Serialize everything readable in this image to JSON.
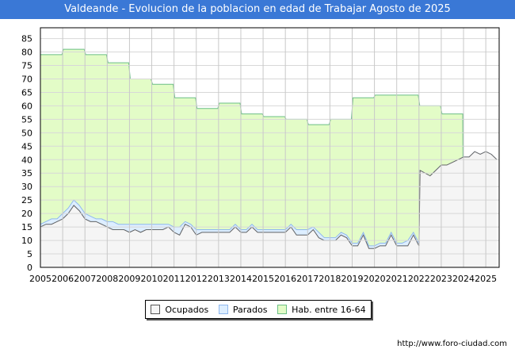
{
  "chart_data": {
    "type": "area",
    "title": "Valdeande - Evolucion de la poblacion en edad de Trabajar Agosto de 2025",
    "xlabel": "",
    "ylabel": "",
    "xlim": [
      2005,
      2025.6
    ],
    "ylim": [
      0,
      89
    ],
    "x_ticks": [
      "2005",
      "2006",
      "2007",
      "2008",
      "2009",
      "2010",
      "2011",
      "2012",
      "2013",
      "2014",
      "2015",
      "2016",
      "2017",
      "2018",
      "2019",
      "2020",
      "2021",
      "2022",
      "2023",
      "2024",
      "2025"
    ],
    "y_ticks": [
      "0",
      "5",
      "10",
      "15",
      "20",
      "25",
      "30",
      "35",
      "40",
      "45",
      "50",
      "55",
      "60",
      "65",
      "70",
      "75",
      "80",
      "85"
    ],
    "grid": true,
    "legend_position": "bottom",
    "hab": {
      "name": "Hab. entre 16-64",
      "color": "#e3fcc7",
      "line": "#6bbf85",
      "years": [
        2005,
        2006,
        2007,
        2008,
        2009,
        2010,
        2011,
        2012,
        2013,
        2014,
        2015,
        2016,
        2017,
        2018,
        2019,
        2020,
        2021,
        2022,
        2023
      ],
      "values": [
        79,
        81,
        79,
        76,
        70,
        68,
        63,
        59,
        61,
        57,
        56,
        55,
        53,
        55,
        63,
        64,
        64,
        60,
        57
      ]
    },
    "ocupados": {
      "name": "Ocupados",
      "color": "#f5f5f5",
      "line": "#666666",
      "start": 2005,
      "step": 0.25,
      "values": [
        15,
        16,
        16,
        17,
        18,
        20,
        23,
        21,
        18,
        17,
        17,
        16,
        15,
        14,
        14,
        14,
        13,
        14,
        13,
        14,
        14,
        14,
        14,
        15,
        13,
        12,
        16,
        15,
        12,
        13,
        13,
        13,
        13,
        13,
        13,
        15,
        13,
        13,
        15,
        13,
        13,
        13,
        13,
        13,
        13,
        15,
        12,
        12,
        12,
        14,
        11,
        10,
        10,
        10,
        12,
        11,
        8,
        8,
        12,
        7,
        7,
        8,
        8,
        12,
        8,
        8,
        8,
        12,
        8,
        36,
        34,
        36,
        38,
        38,
        39,
        40,
        41,
        41,
        43,
        42,
        43,
        42,
        40
      ]
    },
    "parados": {
      "name": "Parados",
      "color": "#ddeeff",
      "line": "#8fb8ef",
      "values": [
        1,
        1,
        2,
        1,
        2,
        2,
        2,
        2,
        2,
        2,
        1,
        2,
        2,
        3,
        2,
        2,
        3,
        2,
        3,
        2,
        2,
        2,
        2,
        1,
        2,
        3,
        1,
        1,
        2,
        1,
        1,
        1,
        1,
        1,
        1,
        1,
        1,
        1,
        1,
        1,
        1,
        1,
        1,
        1,
        1,
        1,
        2,
        2,
        2,
        1,
        2,
        1,
        1,
        1,
        1,
        1,
        1,
        1,
        1,
        1,
        1,
        1,
        1,
        1,
        1,
        1,
        2,
        1,
        1,
        0,
        0,
        0,
        0,
        0,
        0,
        0,
        0,
        0,
        0,
        0,
        0,
        0,
        0
      ]
    }
  },
  "legend": [
    "Ocupados",
    "Parados",
    "Hab. entre 16-64"
  ],
  "footer": "http://www.foro-ciudad.com"
}
